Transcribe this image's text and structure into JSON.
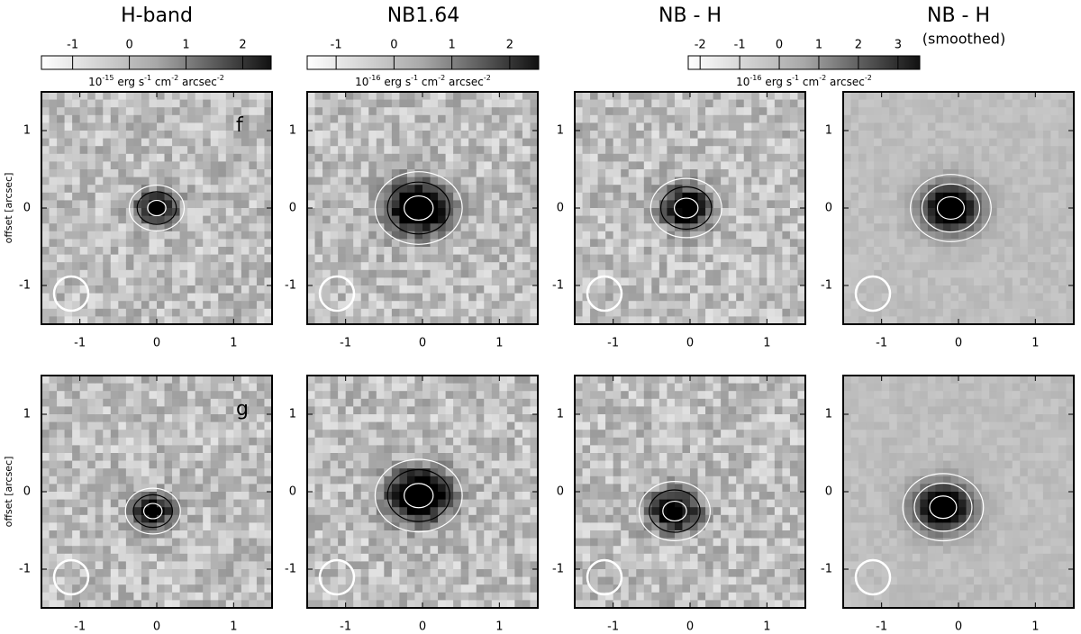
{
  "column_titles": [
    "H-band",
    "NB1.64",
    "NB - H",
    "NB - H"
  ],
  "column_subtitle": "(smoothed)",
  "colorbars": [
    {
      "lim": [
        -1.55,
        2.5
      ],
      "ticks": [
        -1,
        0,
        1,
        2
      ],
      "unit": [
        "10",
        "-15",
        " erg s",
        "-1",
        " cm",
        "-2",
        " arcsec",
        "-2"
      ]
    },
    {
      "lim": [
        -1.5,
        2.5
      ],
      "ticks": [
        -1,
        0,
        1,
        2
      ],
      "unit": [
        "10",
        "-16",
        " erg s",
        "-1",
        " cm",
        "-2",
        " arcsec",
        "-2"
      ]
    },
    {
      "lim": [
        -2.3,
        3.55
      ],
      "ticks": [
        -2,
        -1,
        0,
        1,
        2,
        3
      ],
      "unit": [
        "10",
        "-16",
        " erg s",
        "-1",
        " cm",
        "-2",
        " arcsec",
        "-2"
      ]
    }
  ],
  "chart_data": [
    {
      "type": "image",
      "panel_label": "f",
      "ylabel": "offset [arcsec]",
      "xlim": [
        -1.5,
        1.5
      ],
      "ylim": [
        -1.5,
        1.5
      ],
      "xticks": [
        -1,
        0,
        1
      ],
      "yticks": [
        -1,
        0,
        1
      ]
    },
    {
      "type": "image",
      "xlim": [
        -1.5,
        1.5
      ],
      "ylim": [
        -1.5,
        1.5
      ],
      "xticks": [
        -1,
        0,
        1
      ],
      "yticks": [
        -1,
        0,
        1
      ]
    },
    {
      "type": "image",
      "xlim": [
        -1.5,
        1.5
      ],
      "ylim": [
        -1.5,
        1.5
      ],
      "xticks": [
        -1,
        0,
        1
      ],
      "yticks": [
        -1,
        0,
        1
      ]
    },
    {
      "type": "image",
      "xlim": [
        -1.5,
        1.5
      ],
      "ylim": [
        -1.5,
        1.5
      ],
      "xticks": [
        -1,
        0,
        1
      ],
      "yticks": [
        -1,
        0,
        1
      ]
    },
    {
      "type": "image",
      "panel_label": "g",
      "ylabel": "offset [arcsec]",
      "xlim": [
        -1.5,
        1.5
      ],
      "ylim": [
        -1.5,
        1.5
      ],
      "xticks": [
        -1,
        0,
        1
      ],
      "yticks": [
        -1,
        0,
        1
      ]
    },
    {
      "type": "image",
      "xlim": [
        -1.5,
        1.5
      ],
      "ylim": [
        -1.5,
        1.5
      ],
      "xticks": [
        -1,
        0,
        1
      ],
      "yticks": [
        -1,
        0,
        1
      ]
    },
    {
      "type": "image",
      "xlim": [
        -1.5,
        1.5
      ],
      "ylim": [
        -1.5,
        1.5
      ],
      "xticks": [
        -1,
        0,
        1
      ],
      "yticks": [
        -1,
        0,
        1
      ]
    },
    {
      "type": "image",
      "xlim": [
        -1.5,
        1.5
      ],
      "ylim": [
        -1.5,
        1.5
      ],
      "xticks": [
        -1,
        0,
        1
      ],
      "yticks": [
        -1,
        0,
        1
      ]
    }
  ]
}
